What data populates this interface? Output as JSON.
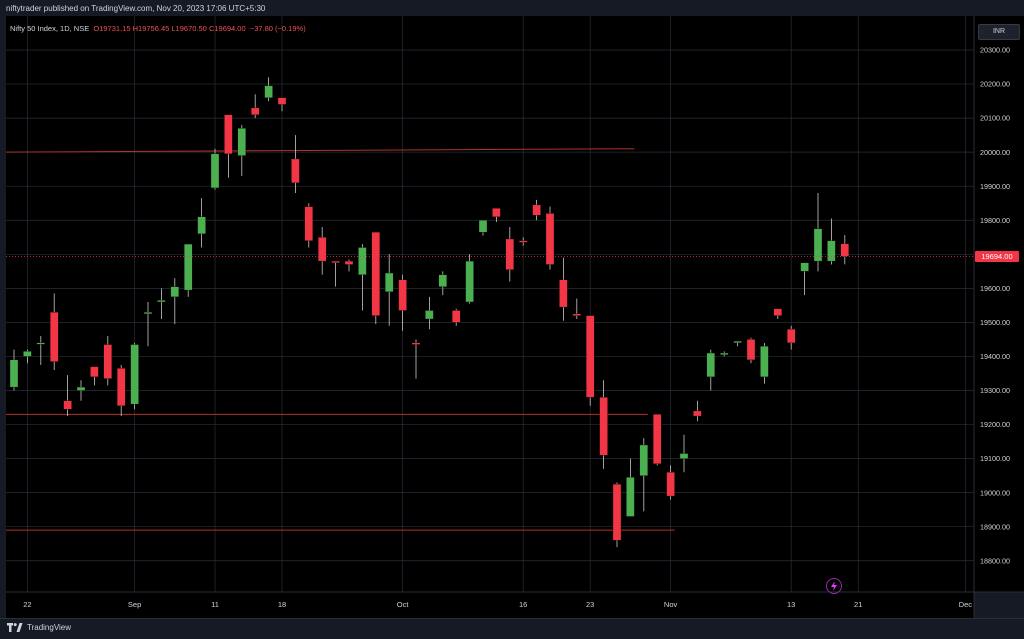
{
  "header": {
    "published_by": "niftytrader published on TradingView.com, Nov 20, 2023 17:06 UTC+5:30",
    "symbol": "Nifty 50 Index, 1D, NSE",
    "open": "O19731.15",
    "high": "H19756.45",
    "low": "L19670.50",
    "close": "C19694.00",
    "change": "−37.80 (−0.19%)"
  },
  "currency_button": "INR",
  "last_price_label": "19694.00",
  "footer": {
    "brand": "TradingView"
  },
  "colors": {
    "background": "#000000",
    "up": "#4caf50",
    "down": "#f23645",
    "grid": "#2a2e39",
    "level_line": "#b2322d"
  },
  "chart_data": {
    "type": "candlestick",
    "ylim": [
      18700,
      20380
    ],
    "y_ticks": [
      "20300.00",
      "20200.00",
      "20100.00",
      "20000.00",
      "19900.00",
      "19800.00",
      "19700.00",
      "19600.00",
      "19500.00",
      "19400.00",
      "19300.00",
      "19200.00",
      "19100.00",
      "19000.00",
      "18900.00",
      "18800.00"
    ],
    "x_ticks": [
      {
        "label": "22",
        "idx": 1
      },
      {
        "label": "Sep",
        "idx": 9
      },
      {
        "label": "11",
        "idx": 15
      },
      {
        "label": "18",
        "idx": 20
      },
      {
        "label": "Oct",
        "idx": 29
      },
      {
        "label": "16",
        "idx": 38
      },
      {
        "label": "23",
        "idx": 43
      },
      {
        "label": "Nov",
        "idx": 49
      },
      {
        "label": "13",
        "idx": 58
      },
      {
        "label": "21",
        "idx": 63
      },
      {
        "label": "Dec",
        "idx": 71
      }
    ],
    "candles": [
      {
        "o": 19310,
        "h": 19420,
        "l": 19300,
        "c": 19390
      },
      {
        "o": 19400,
        "h": 19420,
        "l": 19380,
        "c": 19415
      },
      {
        "o": 19440,
        "h": 19460,
        "l": 19375,
        "c": 19440
      },
      {
        "o": 19530,
        "h": 19585,
        "l": 19360,
        "c": 19385
      },
      {
        "o": 19270,
        "h": 19345,
        "l": 19225,
        "c": 19245
      },
      {
        "o": 19300,
        "h": 19330,
        "l": 19270,
        "c": 19310
      },
      {
        "o": 19370,
        "h": 19370,
        "l": 19315,
        "c": 19340
      },
      {
        "o": 19435,
        "h": 19460,
        "l": 19315,
        "c": 19335
      },
      {
        "o": 19365,
        "h": 19375,
        "l": 19225,
        "c": 19255
      },
      {
        "o": 19260,
        "h": 19440,
        "l": 19245,
        "c": 19435
      },
      {
        "o": 19525,
        "h": 19560,
        "l": 19430,
        "c": 19530
      },
      {
        "o": 19560,
        "h": 19600,
        "l": 19510,
        "c": 19565
      },
      {
        "o": 19575,
        "h": 19630,
        "l": 19495,
        "c": 19605
      },
      {
        "o": 19595,
        "h": 19730,
        "l": 19575,
        "c": 19730
      },
      {
        "o": 19760,
        "h": 19865,
        "l": 19720,
        "c": 19810
      },
      {
        "o": 19895,
        "h": 20010,
        "l": 19890,
        "c": 19995
      },
      {
        "o": 20110,
        "h": 20110,
        "l": 19925,
        "c": 19995
      },
      {
        "o": 19990,
        "h": 20080,
        "l": 19930,
        "c": 20070
      },
      {
        "o": 20130,
        "h": 20170,
        "l": 20100,
        "c": 20110
      },
      {
        "o": 20160,
        "h": 20220,
        "l": 20150,
        "c": 20195
      },
      {
        "o": 20160,
        "h": 20160,
        "l": 20120,
        "c": 20140
      },
      {
        "o": 19980,
        "h": 20050,
        "l": 19880,
        "c": 19910
      },
      {
        "o": 19840,
        "h": 19850,
        "l": 19720,
        "c": 19740
      },
      {
        "o": 19750,
        "h": 19780,
        "l": 19640,
        "c": 19680
      },
      {
        "o": 19680,
        "h": 19680,
        "l": 19605,
        "c": 19675
      },
      {
        "o": 19680,
        "h": 19685,
        "l": 19650,
        "c": 19670
      },
      {
        "o": 19640,
        "h": 19730,
        "l": 19535,
        "c": 19720
      },
      {
        "o": 19765,
        "h": 19765,
        "l": 19495,
        "c": 19520
      },
      {
        "o": 19590,
        "h": 19700,
        "l": 19490,
        "c": 19645
      },
      {
        "o": 19625,
        "h": 19640,
        "l": 19475,
        "c": 19535
      },
      {
        "o": 19440,
        "h": 19450,
        "l": 19335,
        "c": 19435
      },
      {
        "o": 19510,
        "h": 19575,
        "l": 19480,
        "c": 19535
      },
      {
        "o": 19605,
        "h": 19650,
        "l": 19580,
        "c": 19640
      },
      {
        "o": 19535,
        "h": 19540,
        "l": 19490,
        "c": 19500
      },
      {
        "o": 19560,
        "h": 19700,
        "l": 19555,
        "c": 19680
      },
      {
        "o": 19765,
        "h": 19800,
        "l": 19755,
        "c": 19800
      },
      {
        "o": 19835,
        "h": 19825,
        "l": 19795,
        "c": 19810
      },
      {
        "o": 19745,
        "h": 19780,
        "l": 19620,
        "c": 19655
      },
      {
        "o": 19740,
        "h": 19750,
        "l": 19725,
        "c": 19735
      },
      {
        "o": 19845,
        "h": 19860,
        "l": 19800,
        "c": 19815
      },
      {
        "o": 19820,
        "h": 19840,
        "l": 19655,
        "c": 19670
      },
      {
        "o": 19625,
        "h": 19690,
        "l": 19505,
        "c": 19545
      },
      {
        "o": 19525,
        "h": 19570,
        "l": 19510,
        "c": 19520
      },
      {
        "o": 19520,
        "h": 19520,
        "l": 19255,
        "c": 19280
      },
      {
        "o": 19280,
        "h": 19330,
        "l": 19070,
        "c": 19110
      },
      {
        "o": 19025,
        "h": 19030,
        "l": 18840,
        "c": 18860
      },
      {
        "o": 18930,
        "h": 19100,
        "l": 18930,
        "c": 19045
      },
      {
        "o": 19050,
        "h": 19160,
        "l": 18945,
        "c": 19140
      },
      {
        "o": 19230,
        "h": 19230,
        "l": 19080,
        "c": 19085
      },
      {
        "o": 19060,
        "h": 19080,
        "l": 18980,
        "c": 18990
      },
      {
        "o": 19100,
        "h": 19170,
        "l": 19060,
        "c": 19115
      },
      {
        "o": 19240,
        "h": 19270,
        "l": 19210,
        "c": 19225
      },
      {
        "o": 19340,
        "h": 19420,
        "l": 19300,
        "c": 19410
      },
      {
        "o": 19405,
        "h": 19415,
        "l": 19400,
        "c": 19410
      },
      {
        "o": 19440,
        "h": 19445,
        "l": 19430,
        "c": 19445
      },
      {
        "o": 19450,
        "h": 19455,
        "l": 19380,
        "c": 19390
      },
      {
        "o": 19340,
        "h": 19440,
        "l": 19320,
        "c": 19430
      },
      {
        "o": 19540,
        "h": 19540,
        "l": 19510,
        "c": 19520
      },
      {
        "o": 19480,
        "h": 19490,
        "l": 19420,
        "c": 19440
      },
      {
        "o": 19650,
        "h": 19670,
        "l": 19580,
        "c": 19675
      },
      {
        "o": 19680,
        "h": 19880,
        "l": 19650,
        "c": 19775
      },
      {
        "o": 19680,
        "h": 19805,
        "l": 19670,
        "c": 19740
      },
      {
        "o": 19731.15,
        "h": 19756.45,
        "l": 19670.5,
        "c": 19694
      }
    ],
    "levels": [
      {
        "value": 20000,
        "from_idx": 0,
        "to_idx": 46,
        "end_value": 20010
      },
      {
        "value": 19230,
        "from_idx": 0,
        "to_idx": 47,
        "end_value": 19230
      },
      {
        "value": 18890,
        "from_idx": 0,
        "to_idx": 49,
        "end_value": 18890
      }
    ],
    "last_price": 19694.0
  }
}
